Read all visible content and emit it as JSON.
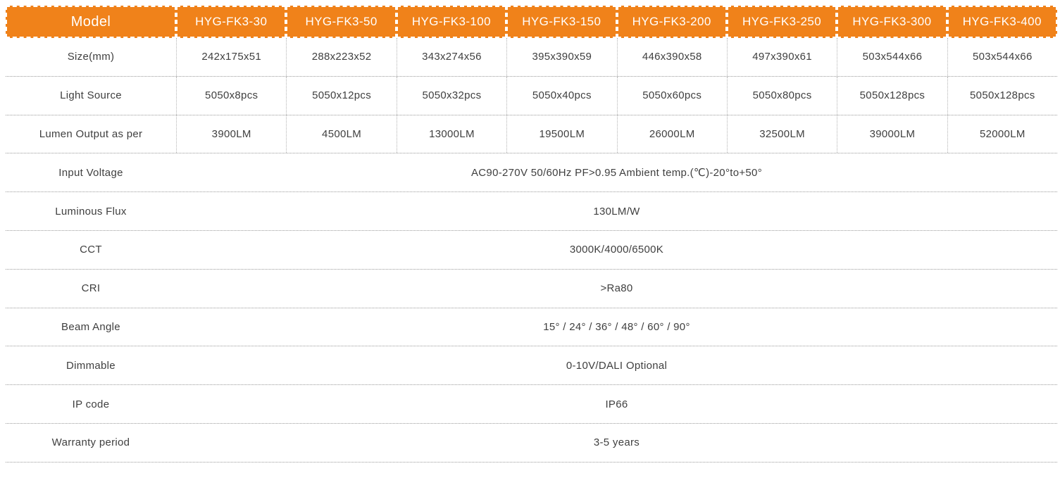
{
  "colors": {
    "accent": "#F0821A",
    "text": "#3F3F3F",
    "grid_dot": "#9A9A9A"
  },
  "table": {
    "header": {
      "model_label": "Model",
      "models": [
        "HYG-FK3-30",
        "HYG-FK3-50",
        "HYG-FK3-100",
        "HYG-FK3-150",
        "HYG-FK3-200",
        "HYG-FK3-250",
        "HYG-FK3-300",
        "HYG-FK3-400"
      ]
    },
    "spec_rows": [
      {
        "label": "Size(mm)",
        "values": [
          "242x175x51",
          "288x223x52",
          "343x274x56",
          "395x390x59",
          "446x390x58",
          "497x390x61",
          "503x544x66",
          "503x544x66"
        ]
      },
      {
        "label": "Light Source",
        "values": [
          "5050x8pcs",
          "5050x12pcs",
          "5050x32pcs",
          "5050x40pcs",
          "5050x60pcs",
          "5050x80pcs",
          "5050x128pcs",
          "5050x128pcs"
        ]
      },
      {
        "label": "Lumen Output as per",
        "values": [
          "3900LM",
          "4500LM",
          "13000LM",
          "19500LM",
          "26000LM",
          "32500LM",
          "39000LM",
          "52000LM"
        ]
      }
    ],
    "full_rows": [
      {
        "label": "Input Voltage",
        "value": "AC90-270V 50/60Hz PF>0.95 Ambient temp.(℃)-20°to+50°"
      },
      {
        "label": "Luminous Flux",
        "value": "130LM/W"
      },
      {
        "label": "CCT",
        "value": "3000K/4000/6500K"
      },
      {
        "label": "CRI",
        "value": ">Ra80"
      },
      {
        "label": "Beam Angle",
        "value": "15° / 24° / 36° / 48° / 60° / 90°"
      },
      {
        "label": "Dimmable",
        "value": "0-10V/DALI Optional"
      },
      {
        "label": "IP code",
        "value": "IP66"
      },
      {
        "label": "Warranty period",
        "value": "3-5 years"
      }
    ]
  }
}
